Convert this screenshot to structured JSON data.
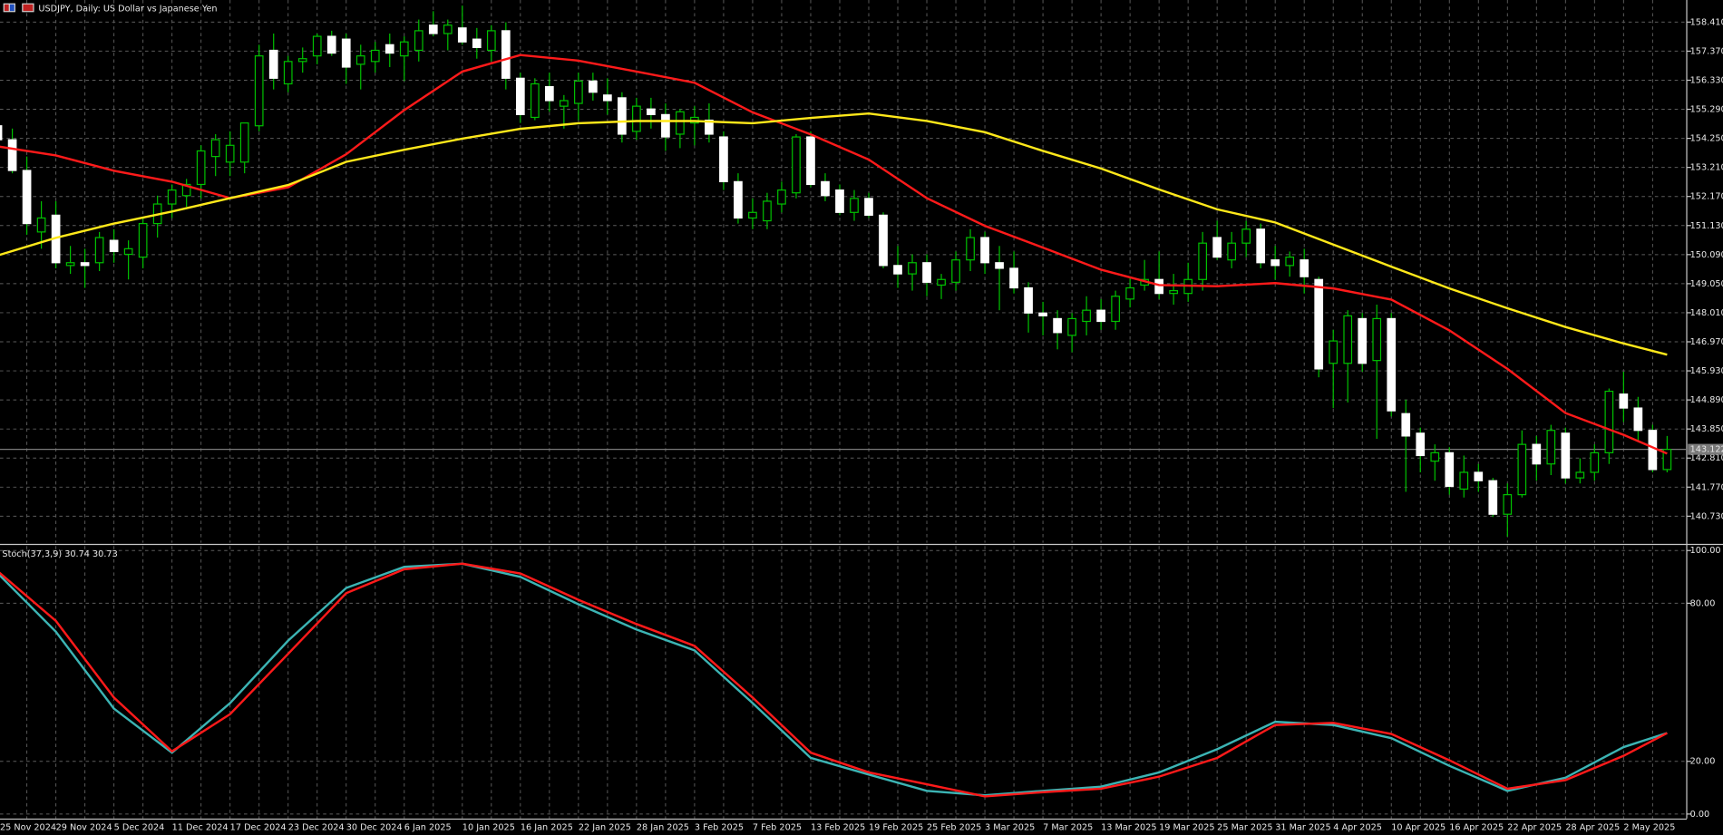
{
  "chart_data": [
    {
      "type": "candlestick",
      "title": "USDJPY, Daily:  US Dollar vs Japanese Yen",
      "categories": [
        "25 Nov 2024",
        null,
        null,
        null,
        "29 Nov 2024",
        null,
        null,
        null,
        "5 Dec 2024",
        null,
        null,
        null,
        "11 Dec 2024",
        null,
        null,
        null,
        "17 Dec 2024",
        null,
        null,
        null,
        "23 Dec 2024",
        null,
        null,
        null,
        "30 Dec 2024",
        null,
        null,
        null,
        "6 Jan 2025",
        null,
        null,
        null,
        "10 Jan 2025",
        null,
        null,
        null,
        "16 Jan 2025",
        null,
        null,
        null,
        "22 Jan 2025",
        null,
        null,
        null,
        "28 Jan 2025",
        null,
        null,
        null,
        "3 Feb 2025",
        null,
        null,
        null,
        "7 Feb 2025",
        null,
        null,
        null,
        "13 Feb 2025",
        null,
        null,
        null,
        "19 Feb 2025",
        null,
        null,
        null,
        "25 Feb 2025",
        null,
        null,
        null,
        "3 Mar 2025",
        null,
        null,
        null,
        "7 Mar 2025",
        null,
        null,
        null,
        "13 Mar 2025",
        null,
        null,
        null,
        "19 Mar 2025",
        null,
        null,
        null,
        "25 Mar 2025",
        null,
        null,
        null,
        "31 Mar 2025",
        null,
        null,
        null,
        "4 Apr 2025",
        null,
        null,
        null,
        "10 Apr 2025",
        null,
        null,
        null,
        "16 Apr 2025",
        null,
        null,
        null,
        "22 Apr 2025",
        null,
        null,
        null,
        "28 Apr 2025",
        null,
        null,
        null,
        "2 May 2025",
        null,
        null,
        null
      ],
      "open": [
        154.7,
        154.2,
        153.1,
        150.9,
        151.5,
        149.7,
        149.8,
        149.8,
        150.6,
        150.1,
        150.0,
        151.2,
        151.9,
        152.2,
        152.6,
        153.6,
        153.4,
        153.4,
        154.7,
        157.4,
        156.2,
        157.0,
        157.2,
        157.9,
        157.8,
        156.9,
        157.0,
        157.6,
        157.2,
        157.4,
        158.3,
        158.0,
        158.2,
        157.8,
        157.4,
        158.1,
        156.4,
        155.0,
        156.1,
        155.4,
        155.5,
        156.3,
        155.8,
        155.7,
        154.5,
        155.3,
        155.1,
        154.4,
        154.8,
        154.9,
        154.3,
        152.7,
        151.4,
        151.3,
        151.9,
        152.3,
        154.3,
        152.7,
        152.4,
        151.6,
        152.1,
        151.5,
        149.7,
        149.4,
        149.8,
        149.0,
        149.1,
        149.9,
        150.7,
        149.8,
        149.6,
        148.9,
        148.0,
        147.8,
        147.2,
        147.7,
        148.1,
        147.7,
        148.5,
        149.0,
        149.2,
        148.7,
        148.7,
        149.2,
        150.7,
        149.9,
        150.5,
        151.0,
        149.9,
        149.7,
        149.9,
        149.2,
        146.2,
        146.2,
        147.8,
        146.3,
        147.8,
        144.4,
        143.7,
        142.7,
        143.0,
        141.7,
        142.3,
        142.0,
        140.8,
        141.5,
        143.3,
        142.6,
        143.7,
        142.1,
        142.3,
        143.0,
        145.1,
        144.6,
        143.8,
        142.4
      ],
      "high": [
        155.0,
        154.6,
        153.6,
        152.0,
        152.0,
        150.4,
        150.3,
        150.9,
        151.0,
        150.6,
        151.4,
        152.2,
        152.6,
        152.8,
        154.0,
        154.4,
        154.5,
        154.8,
        157.6,
        158.0,
        157.2,
        157.5,
        158.0,
        158.1,
        158.0,
        157.6,
        157.7,
        158.0,
        157.9,
        158.5,
        158.8,
        158.5,
        159.0,
        158.2,
        158.3,
        158.4,
        156.6,
        156.4,
        156.6,
        155.8,
        156.6,
        156.6,
        156.4,
        155.9,
        155.7,
        155.7,
        155.5,
        155.3,
        155.4,
        155.5,
        154.5,
        153.0,
        152.1,
        152.3,
        152.7,
        154.4,
        154.5,
        153.0,
        152.6,
        152.4,
        152.3,
        151.6,
        150.4,
        150.1,
        150.1,
        149.4,
        150.2,
        151.0,
        150.9,
        150.4,
        150.2,
        149.1,
        148.4,
        148.1,
        148.0,
        148.6,
        148.5,
        148.8,
        149.3,
        149.9,
        150.2,
        149.4,
        149.8,
        150.9,
        151.3,
        150.9,
        151.3,
        151.2,
        150.4,
        150.2,
        150.3,
        149.3,
        147.4,
        148.1,
        148.0,
        148.3,
        148.0,
        144.9,
        143.9,
        143.3,
        143.2,
        142.9,
        142.6,
        142.1,
        141.9,
        143.8,
        143.6,
        144.0,
        143.9,
        142.8,
        143.3,
        145.3,
        145.9,
        145.0,
        144.0,
        143.6
      ],
      "low": [
        154.0,
        153.0,
        150.8,
        150.3,
        149.6,
        149.4,
        148.9,
        149.5,
        149.8,
        149.2,
        149.6,
        150.7,
        151.4,
        151.8,
        152.1,
        152.9,
        152.9,
        153.0,
        154.5,
        156.0,
        155.9,
        156.6,
        156.9,
        157.2,
        156.2,
        156.0,
        156.6,
        156.8,
        156.3,
        157.0,
        157.9,
        157.4,
        157.6,
        157.1,
        157.0,
        156.0,
        154.8,
        154.9,
        155.2,
        154.6,
        154.9,
        155.6,
        155.1,
        154.1,
        154.2,
        154.6,
        153.8,
        153.9,
        154.0,
        154.1,
        152.4,
        151.2,
        151.0,
        151.0,
        151.6,
        152.1,
        152.5,
        152.0,
        151.5,
        151.3,
        151.4,
        149.6,
        148.9,
        148.8,
        148.6,
        148.5,
        148.8,
        149.5,
        149.4,
        148.1,
        148.7,
        147.3,
        147.2,
        146.7,
        146.6,
        147.2,
        147.4,
        147.4,
        148.2,
        148.8,
        148.5,
        148.3,
        148.4,
        148.8,
        149.9,
        149.6,
        150.0,
        149.6,
        149.2,
        149.3,
        148.7,
        145.7,
        144.6,
        144.8,
        145.9,
        143.5,
        144.3,
        141.6,
        142.3,
        142.0,
        141.5,
        141.4,
        141.6,
        140.7,
        140.0,
        141.4,
        142.0,
        142.2,
        141.9,
        141.9,
        142.0,
        142.6,
        144.1,
        143.4,
        142.3,
        142.3
      ],
      "close": [
        154.2,
        153.1,
        151.2,
        151.4,
        149.8,
        149.8,
        149.7,
        150.7,
        150.2,
        150.3,
        151.2,
        151.9,
        152.4,
        152.6,
        153.8,
        154.2,
        154.0,
        154.8,
        157.2,
        156.4,
        157.0,
        157.1,
        157.9,
        157.3,
        156.8,
        157.2,
        157.4,
        157.3,
        157.7,
        158.1,
        158.0,
        158.3,
        157.7,
        157.5,
        158.1,
        156.4,
        155.1,
        156.2,
        155.6,
        155.6,
        156.3,
        155.9,
        155.6,
        154.4,
        155.4,
        155.1,
        154.3,
        155.2,
        155.0,
        154.4,
        152.7,
        151.4,
        151.6,
        152.0,
        152.4,
        154.3,
        152.6,
        152.2,
        151.6,
        152.1,
        151.5,
        149.7,
        149.4,
        149.8,
        149.1,
        149.2,
        149.9,
        150.7,
        149.8,
        149.6,
        148.9,
        148.0,
        147.9,
        147.3,
        147.8,
        148.1,
        147.7,
        148.6,
        148.9,
        149.2,
        148.7,
        148.8,
        149.2,
        150.5,
        150.0,
        150.5,
        151.0,
        149.8,
        149.7,
        150.0,
        149.3,
        146.0,
        147.0,
        147.9,
        146.2,
        147.8,
        144.5,
        143.6,
        142.9,
        143.0,
        141.8,
        142.3,
        142.0,
        140.8,
        141.5,
        143.3,
        142.6,
        143.8,
        142.1,
        142.3,
        143.0,
        145.2,
        144.6,
        143.8,
        142.4,
        143.12
      ],
      "up_color": "#000000",
      "up_border": "#00c000",
      "down_color": "#ffffff",
      "wick_color": "#00c000",
      "overlay_x": [
        0,
        4,
        8,
        12,
        16,
        20,
        24,
        28,
        32,
        36,
        40,
        44,
        48,
        52,
        56,
        60,
        64,
        68,
        72,
        76,
        80,
        84,
        88,
        92,
        96,
        100,
        104,
        108,
        112,
        115
      ],
      "overlays": [
        {
          "color": "#ff1a1a",
          "values": [
            153.96,
            153.64,
            153.09,
            152.7,
            152.11,
            152.5,
            153.68,
            155.26,
            156.64,
            157.23,
            157.03,
            156.64,
            156.24,
            155.18,
            154.39,
            153.49,
            152.11,
            151.12,
            150.34,
            149.55,
            149.0,
            148.96,
            149.07,
            148.88,
            148.48,
            147.38,
            146.0,
            144.42,
            143.64,
            142.97
          ]
        },
        {
          "color": "#ffe81a",
          "values": [
            150.06,
            150.69,
            151.2,
            151.63,
            152.11,
            152.58,
            153.41,
            153.84,
            154.24,
            154.59,
            154.79,
            154.87,
            154.87,
            154.79,
            154.98,
            155.14,
            154.87,
            154.47,
            153.8,
            153.17,
            152.42,
            151.71,
            151.24,
            150.45,
            149.66,
            148.88,
            148.17,
            147.5,
            146.91,
            146.51
          ]
        }
      ],
      "current_price": 143.122,
      "ylim": [
        139.78,
        159.2
      ],
      "yticks": [
        {
          "value": 158.41,
          "label": "158.410"
        },
        {
          "value": 157.37,
          "label": "157.370"
        },
        {
          "value": 156.33,
          "label": "156.330"
        },
        {
          "value": 155.29,
          "label": "155.290"
        },
        {
          "value": 154.25,
          "label": "154.250"
        },
        {
          "value": 153.21,
          "label": "153.210"
        },
        {
          "value": 152.17,
          "label": "152.170"
        },
        {
          "value": 151.13,
          "label": "151.130"
        },
        {
          "value": 150.09,
          "label": "150.090"
        },
        {
          "value": 149.05,
          "label": "149.050"
        },
        {
          "value": 148.01,
          "label": "148.010"
        },
        {
          "value": 146.97,
          "label": "146.970"
        },
        {
          "value": 145.93,
          "label": "145.930"
        },
        {
          "value": 144.89,
          "label": "144.890"
        },
        {
          "value": 143.85,
          "label": "143.850"
        },
        {
          "value": 142.81,
          "label": "142.810"
        },
        {
          "value": 141.77,
          "label": "141.770"
        },
        {
          "value": 140.73,
          "label": "140.730"
        }
      ],
      "grid": true
    },
    {
      "type": "line",
      "title": "Stoch(37,3,9) 30.74 30.73",
      "x": [
        0,
        4,
        8,
        12,
        16,
        20,
        24,
        28,
        32,
        36,
        40,
        44,
        48,
        52,
        56,
        60,
        64,
        68,
        72,
        76,
        80,
        84,
        88,
        92,
        96,
        100,
        104,
        108,
        112,
        115
      ],
      "series": [
        {
          "color": "#3cb4b4",
          "values": [
            91.3,
            69.2,
            40.0,
            23.3,
            42.1,
            65.8,
            85.8,
            93.8,
            95.0,
            90.0,
            79.6,
            70.0,
            62.1,
            42.1,
            21.3,
            15.0,
            8.8,
            7.1,
            8.8,
            10.4,
            15.8,
            24.6,
            35.0,
            33.8,
            28.8,
            18.3,
            8.8,
            13.8,
            25.4,
            30.74
          ]
        },
        {
          "color": "#ff1a1a",
          "values": [
            92.1,
            73.3,
            44.2,
            23.8,
            37.9,
            60.8,
            83.8,
            92.9,
            95.0,
            91.3,
            81.3,
            72.1,
            63.8,
            44.2,
            23.3,
            15.8,
            11.3,
            6.7,
            8.3,
            9.6,
            14.2,
            21.3,
            33.8,
            34.6,
            30.4,
            20.4,
            9.6,
            12.9,
            22.1,
            30.73
          ]
        }
      ],
      "ylim": [
        -1.7,
        101.7
      ],
      "yticks": [
        {
          "value": 100,
          "label": "100.00"
        },
        {
          "value": 80,
          "label": "80.00"
        },
        {
          "value": 20,
          "label": "20.00"
        },
        {
          "value": 0,
          "label": "0.00"
        }
      ],
      "grid": true
    }
  ]
}
